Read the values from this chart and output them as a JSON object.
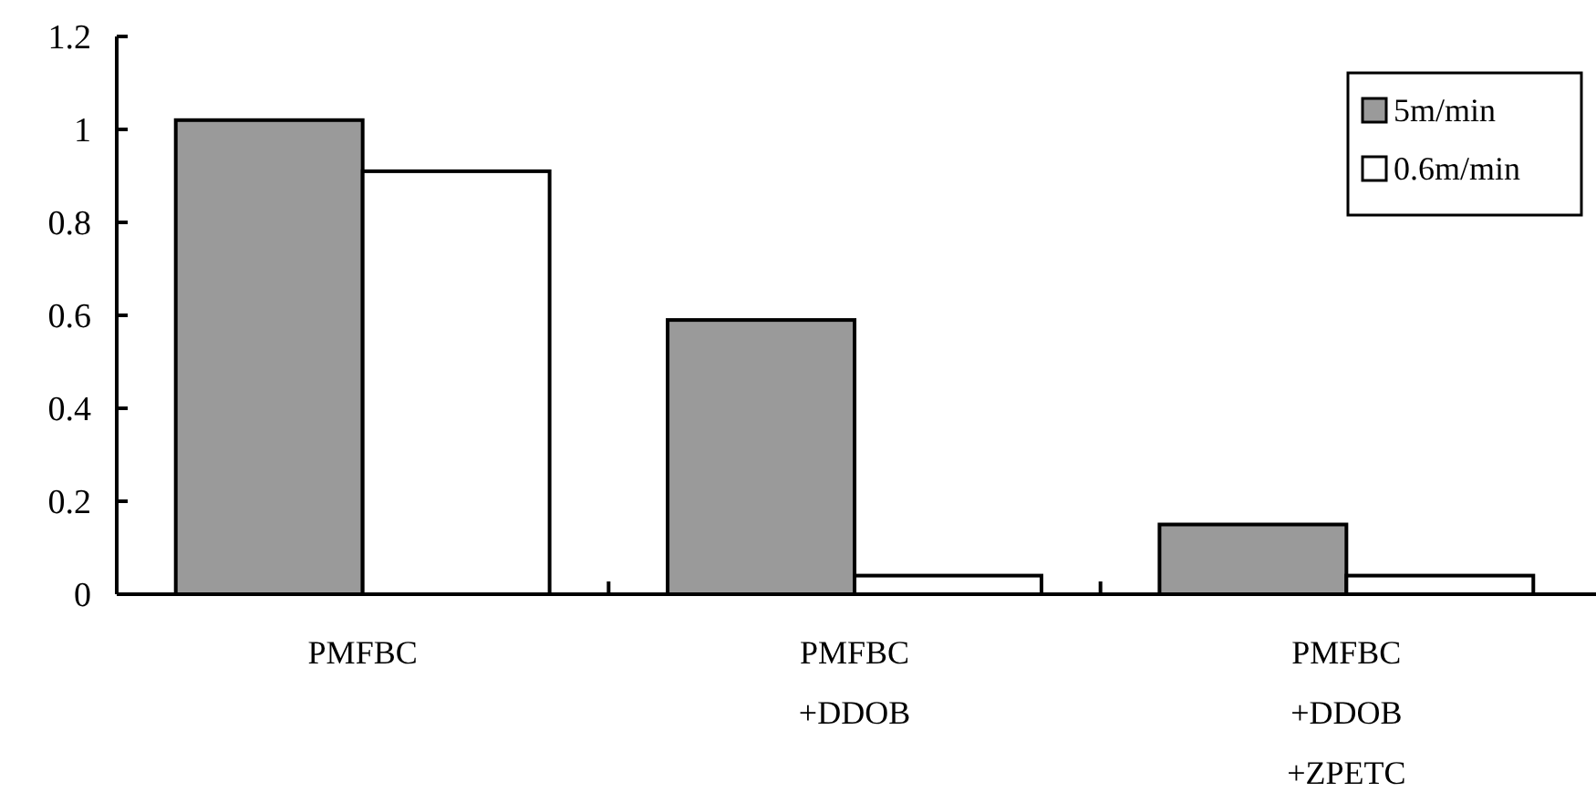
{
  "chart_data": {
    "type": "bar",
    "categories": [
      "PMFBC",
      "PMFBC\n+DDOB",
      "PMFBC\n+DDOB\n+ZPETC"
    ],
    "series": [
      {
        "name": "5m/min",
        "color": "#9a9a9a",
        "values": [
          1.02,
          0.59,
          0.15
        ]
      },
      {
        "name": "0.6m/min",
        "color": "#ffffff",
        "values": [
          0.91,
          0.04,
          0.04
        ]
      }
    ],
    "ylim": [
      0,
      1.2
    ],
    "yticks": [
      0,
      0.2,
      0.4,
      0.6,
      0.8,
      1,
      1.2
    ],
    "legend": "top right",
    "grid": false
  }
}
